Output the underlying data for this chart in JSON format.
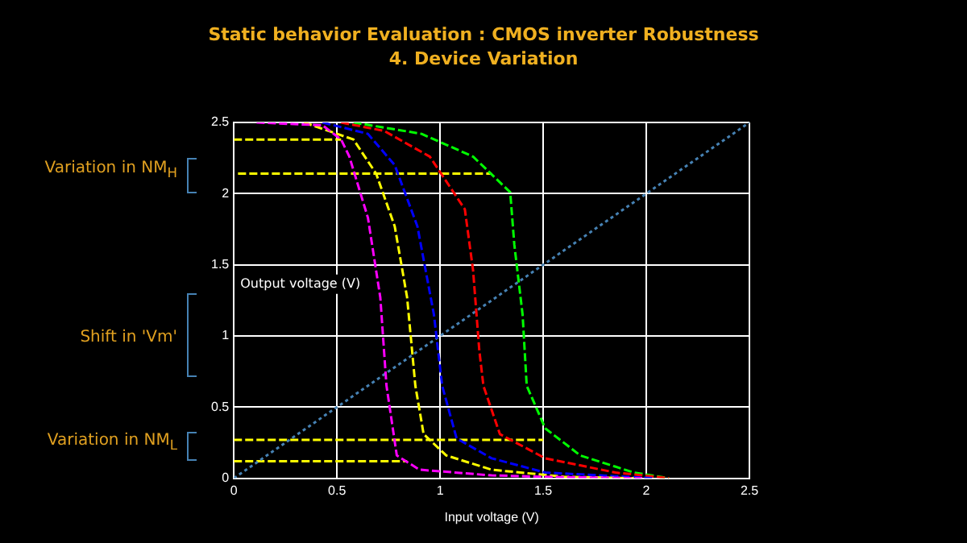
{
  "chart_data": {
    "type": "line",
    "title": "Static behavior Evaluation : CMOS inverter Robustness",
    "subtitle": "4. Device Variation",
    "xlabel": "Input voltage (V)",
    "ylabel": "Output voltage (V)",
    "annotations": [
      "Variation in NM$_{H}$",
      "Shift in 'Vm'",
      "Variation in NM$_{L}$"
    ],
    "xlim": [
      0,
      2.5
    ],
    "xticks": [
      0,
      0.5,
      1,
      1.5,
      2,
      2.5
    ],
    "ylim": [
      0,
      2.5
    ],
    "yticks": [
      0,
      0.5,
      1,
      1.5,
      2,
      2.5
    ],
    "grid": true,
    "legend": false,
    "marker": "none",
    "series": [
      {
        "color": "#ff00ff",
        "line_style": "dashed",
        "x": [
          0.11,
          0.43,
          0.52,
          0.56,
          0.65,
          0.71,
          0.74,
          0.79,
          0.9,
          1.25,
          1.5,
          1.98
        ],
        "values": [
          2.5,
          2.48,
          2.38,
          2.26,
          1.83,
          1.27,
          0.65,
          0.16,
          0.06,
          0.02,
          0.01,
          0
        ]
      },
      {
        "color": "#ffff00",
        "line_style": "dashed",
        "x": [
          0.34,
          0.58,
          0.69,
          0.78,
          0.84,
          0.88,
          0.92,
          1.03,
          1.25,
          1.6,
          1.94
        ],
        "values": [
          2.5,
          2.38,
          2.14,
          1.77,
          1.27,
          0.65,
          0.31,
          0.16,
          0.06,
          0.01,
          0
        ]
      },
      {
        "color": "#0000ff",
        "line_style": "dashed",
        "x": [
          0.43,
          0.65,
          0.78,
          0.89,
          0.97,
          1.01,
          1.08,
          1.25,
          1.51,
          2.03
        ],
        "values": [
          2.5,
          2.42,
          2.2,
          1.77,
          1.15,
          0.65,
          0.28,
          0.14,
          0.04,
          0
        ]
      },
      {
        "color": "#ff0000",
        "line_style": "dashed",
        "x": [
          0.52,
          0.73,
          0.95,
          1.12,
          1.16,
          1.19,
          1.21,
          1.29,
          1.51,
          1.85,
          2.11
        ],
        "values": [
          2.5,
          2.44,
          2.26,
          1.89,
          1.46,
          0.9,
          0.65,
          0.31,
          0.14,
          0.04,
          0
        ]
      },
      {
        "color": "#00ff00",
        "line_style": "dashed",
        "x": [
          0.58,
          0.91,
          1.16,
          1.34,
          1.36,
          1.4,
          1.42,
          1.51,
          1.68,
          1.94,
          2.11
        ],
        "values": [
          2.5,
          2.42,
          2.26,
          2.01,
          1.64,
          1.15,
          0.65,
          0.35,
          0.16,
          0.04,
          0
        ]
      },
      {
        "color": "#4682b4",
        "line_style": "dotted",
        "x": [
          0,
          2.5
        ],
        "values": [
          0,
          2.5
        ]
      },
      {
        "color": "#ffff00",
        "line_style": "dashed",
        "x": [
          0,
          0.52
        ],
        "values": [
          2.38,
          2.38
        ]
      },
      {
        "color": "#ffff00",
        "line_style": "dashed",
        "x": [
          0.02,
          1.25
        ],
        "values": [
          2.14,
          2.14
        ]
      },
      {
        "color": "#ffff00",
        "line_style": "dashed",
        "x": [
          0,
          1.5
        ],
        "values": [
          0.27,
          0.27
        ]
      },
      {
        "color": "#ffff00",
        "line_style": "dashed",
        "x": [
          0,
          0.84
        ],
        "values": [
          0.12,
          0.12
        ]
      }
    ]
  }
}
